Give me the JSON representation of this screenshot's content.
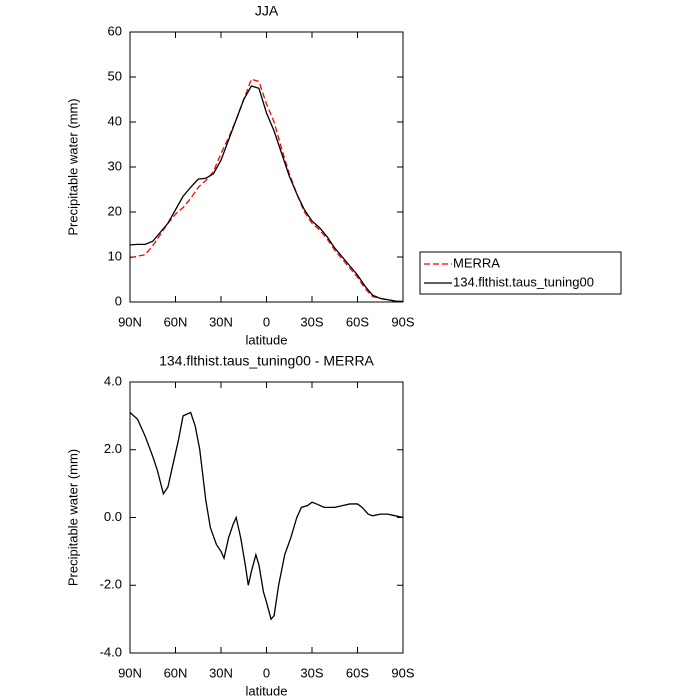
{
  "chart_data": [
    {
      "type": "line",
      "title": "JJA",
      "xlabel": "latitude",
      "ylabel": "Precipitable water (mm)",
      "x": [
        90,
        85,
        80,
        75,
        70,
        65,
        60,
        55,
        50,
        45,
        40,
        35,
        30,
        25,
        20,
        15,
        10,
        5,
        0,
        -5,
        -10,
        -15,
        -20,
        -25,
        -30,
        -35,
        -40,
        -45,
        -50,
        -55,
        -60,
        -65,
        -70,
        -75,
        -80,
        -85,
        -90
      ],
      "series": [
        {
          "name": "MERRA",
          "color": "#ff0000",
          "dash": true,
          "values": [
            9.8,
            10.2,
            10.5,
            12.5,
            15,
            17.5,
            19.5,
            21,
            23,
            25.5,
            27,
            29,
            33,
            36.5,
            40.5,
            45,
            49.5,
            49,
            44,
            40,
            34,
            28.5,
            24,
            20,
            17.5,
            16,
            14,
            11.5,
            9.5,
            7.5,
            5.5,
            3,
            1.2,
            0.8,
            0.5,
            0.2,
            0.1
          ]
        },
        {
          "name": "134.flthist.taus_tuning00",
          "color": "#000000",
          "dash": false,
          "values": [
            12.7,
            12.8,
            12.8,
            13.5,
            15.5,
            17.5,
            20.5,
            23.5,
            25.5,
            27.3,
            27.5,
            28.5,
            31.5,
            36,
            40.5,
            45,
            48,
            47.5,
            42,
            38,
            33,
            28,
            24,
            20.5,
            18,
            16.5,
            14.5,
            12,
            10,
            8,
            6,
            3.5,
            1.5,
            0.8,
            0.5,
            0.2,
            0.1
          ]
        }
      ],
      "xlim": [
        90,
        -90
      ],
      "xticks": [
        {
          "value": 90,
          "label": "90N"
        },
        {
          "value": 60,
          "label": "60N"
        },
        {
          "value": 30,
          "label": "30N"
        },
        0,
        {
          "value": -30,
          "label": "30S"
        },
        {
          "value": -60,
          "label": "60S"
        },
        {
          "value": -90,
          "label": "90S"
        }
      ],
      "ylim": [
        0,
        60
      ],
      "yticks": [
        0,
        10,
        20,
        30,
        40,
        50,
        60
      ],
      "legend": "right",
      "grid": false
    },
    {
      "type": "line",
      "title": "134.flthist.taus_tuning00 - MERRA",
      "xlabel": "latitude",
      "ylabel": "Precipitable water (mm)",
      "x": [
        90,
        85,
        80,
        75,
        72,
        68,
        65,
        62,
        58,
        55,
        50,
        47,
        44,
        40,
        37,
        33,
        30,
        28,
        25,
        22,
        20,
        17,
        14,
        12,
        10,
        7,
        5,
        2,
        0,
        -3,
        -5,
        -8,
        -12,
        -16,
        -20,
        -23,
        -27,
        -30,
        -33,
        -38,
        -45,
        -50,
        -55,
        -60,
        -63,
        -67,
        -70,
        -75,
        -80,
        -85,
        -90
      ],
      "series": [
        {
          "name": "134.flthist.taus_tuning00 - MERRA",
          "color": "#000000",
          "dash": false,
          "values": [
            3.1,
            2.9,
            2.4,
            1.8,
            1.4,
            0.7,
            0.9,
            1.5,
            2.3,
            3.0,
            3.1,
            2.7,
            2.0,
            0.5,
            -0.3,
            -0.8,
            -1.0,
            -1.2,
            -0.6,
            -0.2,
            0.0,
            -0.6,
            -1.4,
            -2.0,
            -1.6,
            -1.1,
            -1.4,
            -2.2,
            -2.5,
            -3.0,
            -2.9,
            -2.0,
            -1.1,
            -0.6,
            0.0,
            0.3,
            0.35,
            0.45,
            0.4,
            0.3,
            0.3,
            0.35,
            0.4,
            0.4,
            0.3,
            0.1,
            0.05,
            0.1,
            0.1,
            0.05,
            0.0
          ]
        }
      ],
      "xlim": [
        90,
        -90
      ],
      "xticks": [
        {
          "value": 90,
          "label": "90N"
        },
        {
          "value": 60,
          "label": "60N"
        },
        {
          "value": 30,
          "label": "30N"
        },
        0,
        {
          "value": -30,
          "label": "30S"
        },
        {
          "value": -60,
          "label": "60S"
        },
        {
          "value": -90,
          "label": "90S"
        }
      ],
      "ylim": [
        -4,
        4
      ],
      "yticks": [
        {
          "value": -4,
          "label": "-4.0"
        },
        {
          "value": -2,
          "label": "-2.0"
        },
        {
          "value": 0,
          "label": "0.0"
        },
        {
          "value": 2,
          "label": "2.0"
        },
        {
          "value": 4,
          "label": "4.0"
        }
      ],
      "grid": false
    }
  ]
}
